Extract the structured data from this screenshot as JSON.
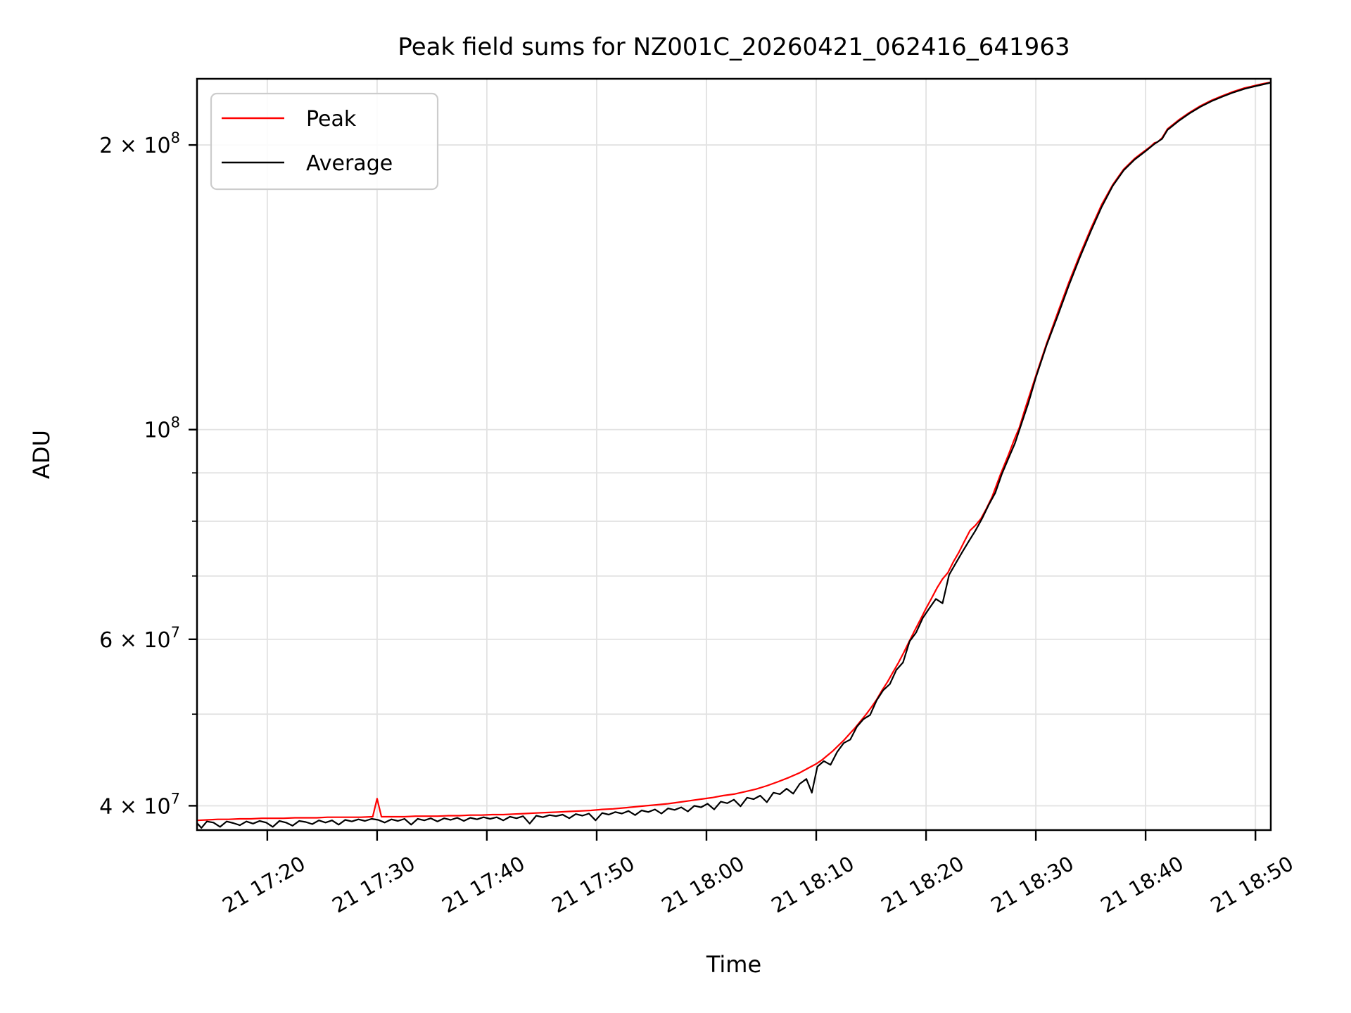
{
  "figure": {
    "title": "Peak field sums for NZ001C_20260421_062416_641963",
    "xlabel": "Time",
    "ylabel": "ADU"
  },
  "chart_data": {
    "type": "line",
    "title": "Peak field sums for NZ001C_20260421_062416_641963",
    "xlabel": "Time",
    "ylabel": "ADU",
    "y_scale": "log",
    "grid": true,
    "legend_position": "upper left",
    "x_unit": "minutes after 2026-04-21 17:00",
    "x_range": [
      13.6,
      111.4
    ],
    "y_range": [
      37700000,
      235000000
    ],
    "x_ticks": [
      {
        "label": "21 17:20",
        "t": 20
      },
      {
        "label": "21 17:30",
        "t": 30
      },
      {
        "label": "21 17:40",
        "t": 40
      },
      {
        "label": "21 17:50",
        "t": 50
      },
      {
        "label": "21 18:00",
        "t": 60
      },
      {
        "label": "21 18:10",
        "t": 70
      },
      {
        "label": "21 18:20",
        "t": 80
      },
      {
        "label": "21 18:30",
        "t": 90
      },
      {
        "label": "21 18:40",
        "t": 100
      },
      {
        "label": "21 18:50",
        "t": 110
      }
    ],
    "y_ticks_major": [
      {
        "mantissa": "4 × 10",
        "exp": "7",
        "value": 40000000
      },
      {
        "mantissa": "6 × 10",
        "exp": "7",
        "value": 60000000
      },
      {
        "mantissa": "10",
        "exp": "8",
        "value": 100000000
      },
      {
        "mantissa": "2 × 10",
        "exp": "8",
        "value": 200000000
      }
    ],
    "y_ticks_minor": [
      50000000,
      70000000,
      80000000,
      90000000
    ],
    "series": [
      {
        "name": "Peak",
        "color": "#ff0000",
        "points": [
          [
            13.6,
            38600000
          ],
          [
            14.5,
            38650000
          ],
          [
            15.5,
            38700000
          ],
          [
            16.5,
            38700000
          ],
          [
            17.5,
            38750000
          ],
          [
            18.5,
            38750000
          ],
          [
            19.5,
            38800000
          ],
          [
            20.5,
            38800000
          ],
          [
            21.5,
            38800000
          ],
          [
            22.5,
            38850000
          ],
          [
            23.5,
            38850000
          ],
          [
            24.5,
            38850000
          ],
          [
            25.5,
            38900000
          ],
          [
            26.5,
            38900000
          ],
          [
            27.5,
            38900000
          ],
          [
            28.5,
            38900000
          ],
          [
            29.6,
            38950000
          ],
          [
            30,
            40700000
          ],
          [
            30.4,
            38950000
          ],
          [
            31.5,
            38950000
          ],
          [
            32.5,
            38950000
          ],
          [
            33.5,
            39000000
          ],
          [
            34.5,
            39000000
          ],
          [
            35.5,
            39000000
          ],
          [
            36.5,
            39050000
          ],
          [
            37.5,
            39050000
          ],
          [
            38.5,
            39100000
          ],
          [
            39.5,
            39100000
          ],
          [
            40.5,
            39150000
          ],
          [
            41.5,
            39150000
          ],
          [
            42.5,
            39200000
          ],
          [
            43.5,
            39250000
          ],
          [
            44.5,
            39300000
          ],
          [
            45.5,
            39350000
          ],
          [
            46.5,
            39400000
          ],
          [
            47.5,
            39450000
          ],
          [
            48.5,
            39500000
          ],
          [
            49.5,
            39550000
          ],
          [
            50.5,
            39650000
          ],
          [
            51.5,
            39700000
          ],
          [
            52.5,
            39800000
          ],
          [
            53.5,
            39900000
          ],
          [
            54.5,
            40000000
          ],
          [
            55.5,
            40100000
          ],
          [
            56.5,
            40200000
          ],
          [
            57.5,
            40350000
          ],
          [
            58.5,
            40500000
          ],
          [
            59.5,
            40650000
          ],
          [
            60.5,
            40800000
          ],
          [
            61.5,
            41000000
          ],
          [
            62.5,
            41150000
          ],
          [
            63.5,
            41400000
          ],
          [
            64.5,
            41650000
          ],
          [
            65.5,
            42000000
          ],
          [
            66.5,
            42400000
          ],
          [
            67.5,
            42850000
          ],
          [
            68.5,
            43350000
          ],
          [
            69.2,
            43800000
          ],
          [
            70,
            44300000
          ],
          [
            70.5,
            44700000
          ],
          [
            71,
            45200000
          ],
          [
            71.5,
            45700000
          ],
          [
            72,
            46300000
          ],
          [
            72.5,
            46900000
          ],
          [
            73,
            47600000
          ],
          [
            73.5,
            48300000
          ],
          [
            74,
            49100000
          ],
          [
            74.5,
            49900000
          ],
          [
            75,
            50800000
          ],
          [
            75.5,
            51800000
          ],
          [
            76,
            53000000
          ],
          [
            76.5,
            54100000
          ],
          [
            77,
            55400000
          ],
          [
            77.5,
            56700000
          ],
          [
            78,
            58200000
          ],
          [
            78.5,
            59800000
          ],
          [
            79,
            61400000
          ],
          [
            79.5,
            63000000
          ],
          [
            80,
            64700000
          ],
          [
            80.5,
            66300000
          ],
          [
            81,
            68000000
          ],
          [
            81.5,
            69500000
          ],
          [
            82,
            70600000
          ],
          [
            82.5,
            72500000
          ],
          [
            83,
            74200000
          ],
          [
            83.5,
            76200000
          ],
          [
            84,
            78200000
          ],
          [
            84.5,
            79200000
          ],
          [
            85,
            80500000
          ],
          [
            85.5,
            82500000
          ],
          [
            86,
            84800000
          ],
          [
            86.8,
            89800000
          ],
          [
            87.5,
            94000000
          ],
          [
            88.1,
            98000000
          ],
          [
            88.5,
            100500000
          ],
          [
            89,
            105000000
          ],
          [
            90,
            114000000
          ],
          [
            91,
            123500000
          ],
          [
            92,
            133000000
          ],
          [
            93,
            143000000
          ],
          [
            94,
            153000000
          ],
          [
            95,
            163000000
          ],
          [
            96,
            173000000
          ],
          [
            97,
            181500000
          ],
          [
            97.5,
            185000000
          ],
          [
            98,
            188500000
          ],
          [
            98.5,
            191000000
          ],
          [
            99,
            193500000
          ],
          [
            99.5,
            195500000
          ],
          [
            100,
            197500000
          ],
          [
            100.5,
            199500000
          ],
          [
            100.8,
            201000000
          ],
          [
            101.1,
            201500000
          ],
          [
            101.5,
            203500000
          ],
          [
            102,
            208000000
          ],
          [
            103,
            212500000
          ],
          [
            104,
            216500000
          ],
          [
            105,
            220000000
          ],
          [
            106,
            223000000
          ],
          [
            107,
            225500000
          ],
          [
            108,
            227800000
          ],
          [
            109,
            229800000
          ],
          [
            110,
            231200000
          ],
          [
            110.7,
            232200000
          ],
          [
            111.4,
            233000000
          ]
        ]
      },
      {
        "name": "Average",
        "color": "#000000",
        "points": [
          [
            13.6,
            38350000
          ],
          [
            14,
            37900000
          ],
          [
            14.5,
            38500000
          ],
          [
            15.1,
            38400000
          ],
          [
            15.7,
            38000000
          ],
          [
            16.3,
            38500000
          ],
          [
            16.9,
            38350000
          ],
          [
            17.5,
            38150000
          ],
          [
            18.1,
            38500000
          ],
          [
            18.7,
            38300000
          ],
          [
            19.3,
            38550000
          ],
          [
            19.9,
            38400000
          ],
          [
            20.5,
            38000000
          ],
          [
            21.1,
            38550000
          ],
          [
            21.7,
            38400000
          ],
          [
            22.3,
            38100000
          ],
          [
            22.9,
            38550000
          ],
          [
            23.5,
            38450000
          ],
          [
            24.1,
            38250000
          ],
          [
            24.7,
            38600000
          ],
          [
            25.3,
            38400000
          ],
          [
            25.9,
            38600000
          ],
          [
            26.5,
            38200000
          ],
          [
            27.1,
            38650000
          ],
          [
            27.7,
            38500000
          ],
          [
            28.3,
            38700000
          ],
          [
            28.9,
            38550000
          ],
          [
            29.5,
            38750000
          ],
          [
            30.1,
            38650000
          ],
          [
            30.7,
            38400000
          ],
          [
            31.3,
            38700000
          ],
          [
            31.9,
            38550000
          ],
          [
            32.5,
            38750000
          ],
          [
            33.1,
            38200000
          ],
          [
            33.7,
            38750000
          ],
          [
            34.3,
            38600000
          ],
          [
            34.9,
            38800000
          ],
          [
            35.5,
            38500000
          ],
          [
            36.1,
            38800000
          ],
          [
            36.7,
            38650000
          ],
          [
            37.3,
            38850000
          ],
          [
            37.9,
            38550000
          ],
          [
            38.5,
            38850000
          ],
          [
            39.1,
            38700000
          ],
          [
            39.7,
            38900000
          ],
          [
            40.3,
            38750000
          ],
          [
            40.9,
            38900000
          ],
          [
            41.5,
            38600000
          ],
          [
            42.1,
            38950000
          ],
          [
            42.7,
            38800000
          ],
          [
            43.3,
            39000000
          ],
          [
            43.9,
            38300000
          ],
          [
            44.5,
            39050000
          ],
          [
            45.1,
            38900000
          ],
          [
            45.7,
            39100000
          ],
          [
            46.3,
            39000000
          ],
          [
            46.9,
            39150000
          ],
          [
            47.5,
            38800000
          ],
          [
            48.1,
            39200000
          ],
          [
            48.7,
            39050000
          ],
          [
            49.3,
            39250000
          ],
          [
            49.9,
            38600000
          ],
          [
            50.5,
            39300000
          ],
          [
            51.1,
            39150000
          ],
          [
            51.7,
            39400000
          ],
          [
            52.3,
            39250000
          ],
          [
            52.9,
            39500000
          ],
          [
            53.5,
            39100000
          ],
          [
            54.1,
            39550000
          ],
          [
            54.7,
            39400000
          ],
          [
            55.3,
            39650000
          ],
          [
            55.9,
            39250000
          ],
          [
            56.5,
            39750000
          ],
          [
            57.1,
            39600000
          ],
          [
            57.7,
            39850000
          ],
          [
            58.3,
            39450000
          ],
          [
            58.9,
            40000000
          ],
          [
            59.5,
            39850000
          ],
          [
            60.1,
            40200000
          ],
          [
            60.7,
            39650000
          ],
          [
            61.3,
            40400000
          ],
          [
            61.9,
            40250000
          ],
          [
            62.5,
            40600000
          ],
          [
            63.1,
            39950000
          ],
          [
            63.7,
            40800000
          ],
          [
            64.3,
            40650000
          ],
          [
            64.9,
            41000000
          ],
          [
            65.5,
            40350000
          ],
          [
            66.1,
            41300000
          ],
          [
            66.7,
            41150000
          ],
          [
            67.3,
            41700000
          ],
          [
            67.9,
            41200000
          ],
          [
            68.5,
            42200000
          ],
          [
            69.1,
            42700000
          ],
          [
            69.6,
            41300000
          ],
          [
            70.1,
            44000000
          ],
          [
            70.7,
            44600000
          ],
          [
            71.3,
            44200000
          ],
          [
            71.9,
            45600000
          ],
          [
            72.5,
            46600000
          ],
          [
            73.1,
            47000000
          ],
          [
            73.7,
            48500000
          ],
          [
            74.3,
            49400000
          ],
          [
            74.9,
            49900000
          ],
          [
            75.5,
            51700000
          ],
          [
            76.1,
            53000000
          ],
          [
            76.7,
            53800000
          ],
          [
            77.3,
            55700000
          ],
          [
            77.9,
            56700000
          ],
          [
            78.5,
            59700000
          ],
          [
            79.1,
            61000000
          ],
          [
            79.7,
            63200000
          ],
          [
            80.3,
            64700000
          ],
          [
            80.9,
            66200000
          ],
          [
            81.5,
            65500000
          ],
          [
            82.1,
            70200000
          ],
          [
            82.7,
            72200000
          ],
          [
            83.3,
            74200000
          ],
          [
            83.9,
            76200000
          ],
          [
            84.5,
            78200000
          ],
          [
            85.1,
            80500000
          ],
          [
            85.7,
            83200000
          ],
          [
            86.3,
            85700000
          ],
          [
            86.9,
            89700000
          ],
          [
            87.5,
            93200000
          ],
          [
            88.1,
            96700000
          ],
          [
            88.7,
            101500000
          ],
          [
            89.3,
            106500000
          ],
          [
            90,
            113500000
          ],
          [
            91,
            123000000
          ],
          [
            92,
            132000000
          ],
          [
            93,
            142000000
          ],
          [
            94,
            152000000
          ],
          [
            95,
            162000000
          ],
          [
            96,
            172000000
          ],
          [
            97,
            181000000
          ],
          [
            98,
            188000000
          ],
          [
            99,
            193000000
          ],
          [
            100,
            197000000
          ],
          [
            100.8,
            200500000
          ],
          [
            101.5,
            203000000
          ],
          [
            102,
            207500000
          ],
          [
            103,
            212000000
          ],
          [
            104,
            216000000
          ],
          [
            105,
            219500000
          ],
          [
            106,
            222500000
          ],
          [
            107,
            225000000
          ],
          [
            108,
            227300000
          ],
          [
            109,
            229300000
          ],
          [
            110,
            230800000
          ],
          [
            110.7,
            231800000
          ],
          [
            111.4,
            232800000
          ]
        ]
      }
    ]
  }
}
